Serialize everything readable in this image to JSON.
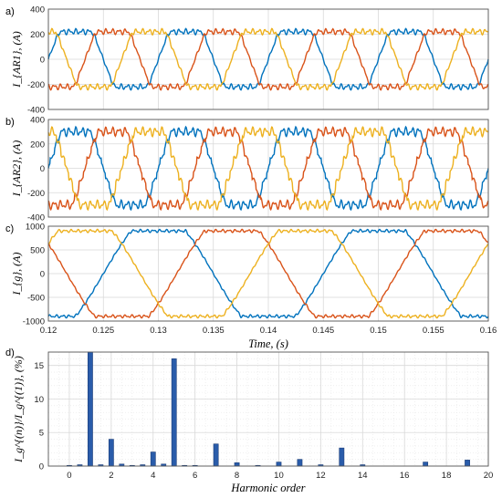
{
  "colors": {
    "phase_a": "#0072BD",
    "phase_b": "#D95319",
    "phase_c": "#EDB120",
    "bar": "#2A5CAA",
    "grid": "#D9D9D9"
  },
  "chart_data": [
    {
      "type": "line",
      "panel_label": "a)",
      "ylabel": "I_{AR1}, (A)",
      "xlim": [
        0.12,
        0.16
      ],
      "ylim": [
        -400,
        400
      ],
      "yticks": [
        -400,
        -200,
        0,
        200,
        400
      ],
      "grid": true,
      "waveform": {
        "fundamental_hz": 100,
        "amplitude": 220,
        "ripple": 25,
        "shape": "quasi-square"
      },
      "series": [
        {
          "phase_deg": 0,
          "color": "#0072BD"
        },
        {
          "phase_deg": -120,
          "color": "#D95319"
        },
        {
          "phase_deg": 120,
          "color": "#EDB120"
        }
      ]
    },
    {
      "type": "line",
      "panel_label": "b)",
      "ylabel": "I_{AR2}, (A)",
      "xlim": [
        0.12,
        0.16
      ],
      "ylim": [
        -400,
        400
      ],
      "yticks": [
        -400,
        -200,
        0,
        200,
        400
      ],
      "grid": true,
      "waveform": {
        "fundamental_hz": 100,
        "amplitude": 300,
        "ripple": 40,
        "shape": "stepped"
      },
      "series": [
        {
          "phase_deg": 0,
          "color": "#0072BD"
        },
        {
          "phase_deg": -120,
          "color": "#D95319"
        },
        {
          "phase_deg": 120,
          "color": "#EDB120"
        }
      ]
    },
    {
      "type": "line",
      "panel_label": "c)",
      "ylabel": "I_{g}, (A)",
      "xlim": [
        0.12,
        0.16
      ],
      "ylim": [
        -1000,
        1000
      ],
      "yticks": [
        -1000,
        -500,
        0,
        500,
        1000
      ],
      "xticks": [
        "0.12",
        "0.125",
        "0.13",
        "0.135",
        "0.14",
        "0.145",
        "0.15",
        "0.155",
        "0.16"
      ],
      "xlabel": "Time, (s)",
      "grid": true,
      "waveform": {
        "fundamental_hz": 50,
        "amplitude": 900,
        "ripple": 35,
        "shape": "trapezoidal"
      },
      "series": [
        {
          "phase_deg": -90,
          "color": "#0072BD"
        },
        {
          "phase_deg": 150,
          "color": "#D95319"
        },
        {
          "phase_deg": 30,
          "color": "#EDB120"
        }
      ]
    },
    {
      "type": "bar",
      "panel_label": "d)",
      "ylabel": "I_g^{(n)}/I_g^{(1)}, (%)",
      "xlabel": "Harmonic order",
      "xlim": [
        -1,
        20
      ],
      "ylim": [
        0,
        17
      ],
      "xticks": [
        "0",
        "2",
        "4",
        "6",
        "8",
        "10",
        "12",
        "14",
        "16",
        "18",
        "20"
      ],
      "yticks": [
        "0",
        "5",
        "10",
        "15"
      ],
      "grid": true,
      "categories": [
        0,
        0.5,
        1,
        1.5,
        2,
        2.5,
        3,
        3.5,
        4,
        4.5,
        5,
        5.5,
        6,
        7,
        8,
        9,
        10,
        11,
        12,
        13,
        14,
        17,
        19
      ],
      "values": [
        0.1,
        0.2,
        17,
        0.2,
        4.0,
        0.3,
        0.1,
        0.2,
        2.1,
        0.3,
        16,
        0.1,
        0.1,
        3.3,
        0.5,
        0.1,
        0.6,
        1.0,
        0.2,
        2.7,
        0.2,
        0.6,
        0.9
      ]
    }
  ]
}
